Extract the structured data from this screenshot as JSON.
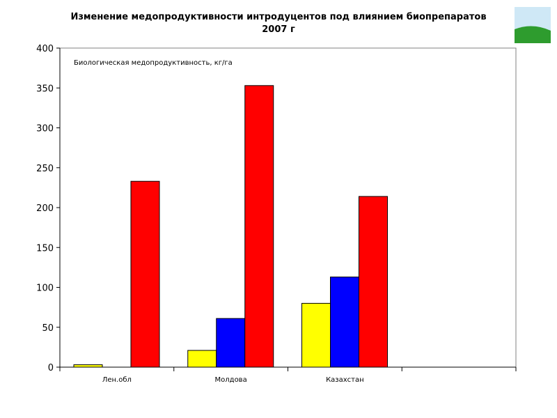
{
  "chart_data": {
    "type": "bar",
    "title": "Изменение медопродуктивности интродуцентов  под влиянием биопрепаратов",
    "subtitle": "2007 г",
    "annotation": "Биологическая медопродуктивность, кг/га",
    "categories": [
      "Лен.обл",
      "Молдова",
      "Казахстан",
      ""
    ],
    "series": [
      {
        "color": "#ffff00",
        "values": [
          3,
          21,
          80,
          null
        ]
      },
      {
        "color": "#0000ff",
        "values": [
          0,
          61,
          113,
          null
        ]
      },
      {
        "color": "#ff0000",
        "values": [
          233,
          353,
          214,
          null
        ]
      }
    ],
    "ylim": [
      0,
      400
    ],
    "yticks": [
      0,
      50,
      100,
      150,
      200,
      250,
      300,
      350,
      400
    ],
    "grid": false,
    "legend": "none",
    "xlabel": "",
    "ylabel": ""
  },
  "logo": {
    "sky_color": "#cfe8f6",
    "grass_color": "#2e9c2e"
  }
}
